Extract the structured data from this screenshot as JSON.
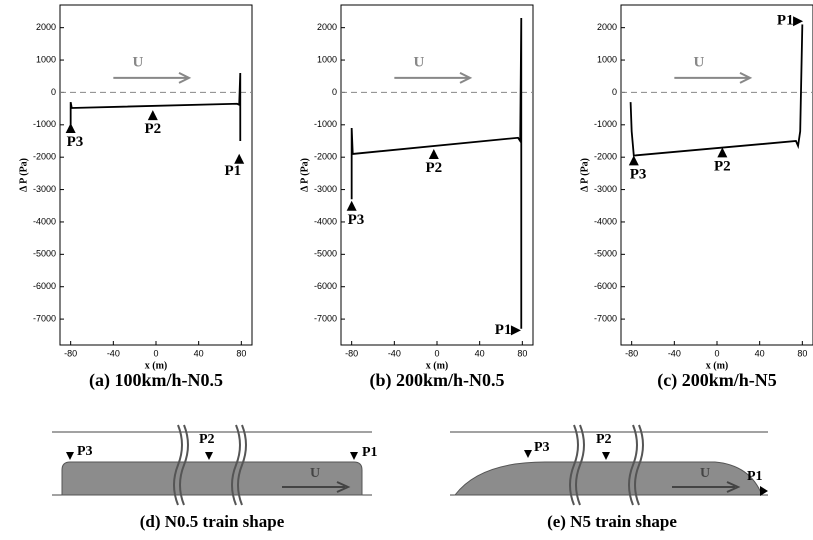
{
  "chart_data": [
    {
      "type": "line",
      "caption": "(a) 100km/h-N0.5",
      "xlabel": "x (m)",
      "ylabel": "Δ P (Pa)",
      "x": [
        -80,
        -80,
        -79,
        76,
        78,
        79,
        79
      ],
      "values": [
        -1000,
        -300,
        -480,
        -350,
        -380,
        600,
        -1500
      ],
      "color": "#000000",
      "xlim": [
        -90,
        90
      ],
      "ylim": [
        -7800,
        2700
      ],
      "xticks": [
        -80,
        -40,
        0,
        40,
        80
      ],
      "yticks": [
        2000,
        1000,
        0,
        -1000,
        -2000,
        -3000,
        -4000,
        -5000,
        -6000,
        -7000
      ],
      "zero_line": true,
      "annotations": [
        "U",
        "P1",
        "P2",
        "P3"
      ]
    },
    {
      "type": "line",
      "caption": "(b) 200km/h-N0.5",
      "xlabel": "x (m)",
      "ylabel": "Δ P (Pa)",
      "x": [
        -80,
        -80,
        -79,
        76,
        78,
        79,
        79
      ],
      "values": [
        -3300,
        -1100,
        -1900,
        -1400,
        -1500,
        2300,
        -7300
      ],
      "color": "#000000",
      "xlim": [
        -90,
        90
      ],
      "ylim": [
        -7800,
        2700
      ],
      "xticks": [
        -80,
        -40,
        0,
        40,
        80
      ],
      "yticks": [
        2000,
        1000,
        0,
        -1000,
        -2000,
        -3000,
        -4000,
        -5000,
        -6000,
        -7000
      ],
      "zero_line": true,
      "annotations": [
        "U",
        "P1",
        "P2",
        "P3"
      ]
    },
    {
      "type": "line",
      "caption": "(c) 200km/h-N5",
      "xlabel": "x (m)",
      "ylabel": "Δ P (Pa)",
      "x": [
        -81,
        -80,
        -78,
        74,
        76,
        78,
        80
      ],
      "values": [
        -300,
        -1200,
        -1950,
        -1500,
        -1650,
        -1200,
        2100
      ],
      "color": "#000000",
      "xlim": [
        -90,
        90
      ],
      "ylim": [
        -7800,
        2700
      ],
      "xticks": [
        -80,
        -40,
        0,
        40,
        80
      ],
      "yticks": [
        2000,
        1000,
        0,
        -1000,
        -2000,
        -3000,
        -4000,
        -5000,
        -6000,
        -7000
      ],
      "zero_line": true,
      "annotations": [
        "U",
        "P1",
        "P2",
        "P3"
      ]
    }
  ],
  "diagrams": [
    {
      "caption": "(d) N0.5 train shape",
      "labels": [
        "P3",
        "P2",
        "P1",
        "U"
      ]
    },
    {
      "caption": "(e) N5 train shape",
      "labels": [
        "P3",
        "P2",
        "P1",
        "U"
      ]
    }
  ]
}
